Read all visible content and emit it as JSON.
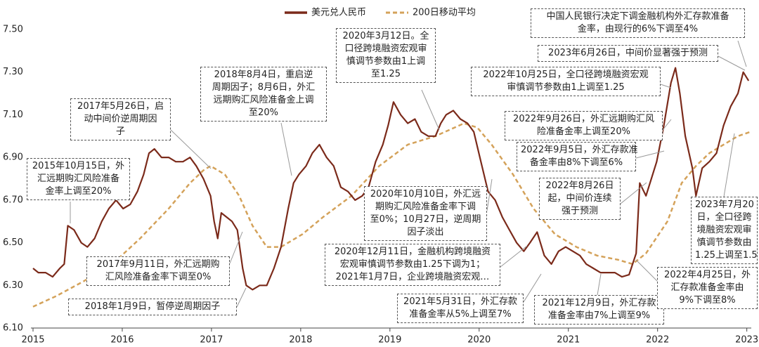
{
  "chart_data": {
    "type": "line",
    "series": [
      {
        "name": "美元兑人民币",
        "color": "#7b2a1a",
        "dashed": false,
        "x": [
          2015.0,
          2015.06,
          2015.14,
          2015.22,
          2015.3,
          2015.35,
          2015.39,
          2015.46,
          2015.54,
          2015.61,
          2015.69,
          2015.77,
          2015.85,
          2015.93,
          2016.01,
          2016.09,
          2016.17,
          2016.24,
          2016.3,
          2016.36,
          2016.44,
          2016.52,
          2016.6,
          2016.68,
          2016.76,
          2016.83,
          2016.91,
          2016.99,
          2017.03,
          2017.07,
          2017.11,
          2017.17,
          2017.23,
          2017.29,
          2017.35,
          2017.39,
          2017.46,
          2017.54,
          2017.62,
          2017.7,
          2017.78,
          2017.86,
          2017.92,
          2017.98,
          2018.06,
          2018.13,
          2018.21,
          2018.29,
          2018.37,
          2018.45,
          2018.53,
          2018.61,
          2018.69,
          2018.76,
          2018.84,
          2018.92,
          2018.98,
          2019.04,
          2019.12,
          2019.2,
          2019.28,
          2019.35,
          2019.43,
          2019.51,
          2019.57,
          2019.63,
          2019.71,
          2019.79,
          2019.87,
          2019.94,
          2020.02,
          2020.1,
          2020.18,
          2020.26,
          2020.34,
          2020.42,
          2020.5,
          2020.57,
          2020.65,
          2020.73,
          2020.81,
          2020.89,
          2020.97,
          2021.05,
          2021.13,
          2021.2,
          2021.28,
          2021.36,
          2021.44,
          2021.52,
          2021.6,
          2021.68,
          2021.76,
          2021.8,
          2021.87,
          2021.99,
          2022.07,
          2022.15,
          2022.2,
          2022.25,
          2022.31,
          2022.39,
          2022.43,
          2022.5,
          2022.58,
          2022.66,
          2022.74,
          2022.82,
          2022.9,
          2022.96,
          2023.02
        ],
        "values": [
          6.38,
          6.36,
          6.36,
          6.34,
          6.38,
          6.4,
          6.58,
          6.56,
          6.5,
          6.48,
          6.52,
          6.6,
          6.66,
          6.7,
          6.66,
          6.68,
          6.74,
          6.82,
          6.92,
          6.94,
          6.9,
          6.9,
          6.88,
          6.88,
          6.9,
          6.86,
          6.8,
          6.72,
          6.6,
          6.52,
          6.64,
          6.62,
          6.6,
          6.56,
          6.38,
          6.3,
          6.28,
          6.3,
          6.3,
          6.38,
          6.48,
          6.66,
          6.78,
          6.82,
          6.86,
          6.92,
          6.96,
          6.9,
          6.86,
          6.76,
          6.74,
          6.7,
          6.72,
          6.76,
          6.88,
          6.96,
          7.05,
          7.16,
          7.1,
          7.06,
          7.08,
          7.02,
          7.0,
          7.0,
          7.06,
          7.1,
          7.12,
          7.08,
          7.06,
          7.02,
          6.88,
          6.74,
          6.7,
          6.62,
          6.56,
          6.5,
          6.46,
          6.5,
          6.55,
          6.44,
          6.4,
          6.46,
          6.48,
          6.46,
          6.44,
          6.4,
          6.38,
          6.36,
          6.36,
          6.36,
          6.34,
          6.35,
          6.45,
          6.78,
          6.72,
          6.88,
          7.05,
          7.25,
          7.32,
          7.2,
          7.0,
          6.85,
          6.72,
          6.85,
          6.88,
          6.92,
          7.05,
          7.14,
          7.2,
          7.3,
          7.26
        ]
      },
      {
        "name": "200日移动平均",
        "color": "#d4a25a",
        "dashed": true,
        "x": [
          2015.0,
          2015.26,
          2015.57,
          2015.89,
          2016.2,
          2016.52,
          2016.76,
          2016.91,
          2016.99,
          2017.15,
          2017.31,
          2017.46,
          2017.62,
          2017.78,
          2018.02,
          2018.25,
          2018.57,
          2018.88,
          2019.2,
          2019.51,
          2019.83,
          2019.98,
          2020.14,
          2020.38,
          2020.61,
          2020.85,
          2021.09,
          2021.32,
          2021.56,
          2021.72,
          2021.87,
          2022.11,
          2022.27,
          2022.43,
          2022.58,
          2022.74,
          2022.9,
          2023.04
        ],
        "values": [
          6.2,
          6.25,
          6.32,
          6.4,
          6.52,
          6.66,
          6.78,
          6.84,
          6.86,
          6.82,
          6.72,
          6.58,
          6.48,
          6.48,
          6.54,
          6.62,
          6.72,
          6.86,
          6.96,
          7.0,
          7.06,
          7.04,
          6.96,
          6.82,
          6.66,
          6.54,
          6.48,
          6.44,
          6.42,
          6.4,
          6.45,
          6.6,
          6.78,
          6.86,
          6.92,
          6.96,
          7.0,
          7.02
        ]
      }
    ],
    "xlim": [
      2015,
      2023.05
    ],
    "xticks": [
      2015,
      2016,
      2017,
      2018,
      2019,
      2020,
      2021,
      2022,
      2023
    ],
    "ylim": [
      6.1,
      7.5
    ],
    "yticks": [
      {
        "value": 7.5,
        "label": "7.50"
      },
      {
        "value": 7.3,
        "label": "7.30"
      },
      {
        "value": 7.1,
        "label": "7.10"
      },
      {
        "value": 6.9,
        "label": "6.90"
      },
      {
        "value": 6.7,
        "label": "6.70"
      },
      {
        "value": 6.5,
        "label": "6.50"
      },
      {
        "value": 6.3,
        "label": "6.30"
      },
      {
        "value": 6.1,
        "label": "6.10"
      }
    ],
    "grid": false,
    "legend": "top",
    "annotations": [
      {
        "lines": [
          "2015年10月15日，外",
          "汇远期购汇风险准备",
          "金率上调至20%"
        ]
      },
      {
        "lines": [
          "2017年5月26日，启",
          "动中间价逆周期因",
          "子"
        ]
      },
      {
        "lines": [
          "2018年8月4日，重启逆",
          "周期因子；8月6日，外汇",
          "远期购汇风险准备金上调",
          "至20%"
        ]
      },
      {
        "lines": [
          "2020年3月12日。全",
          "口径跨境融资宏观审",
          "慎调节参数由1上调",
          "至1.25"
        ]
      },
      {
        "lines": [
          "中国人民银行决定下调金融机构外汇存款准备",
          "金率，由现行的6%下调至4%"
        ]
      },
      {
        "lines": [
          "2023年6月26日，中间价显著强于预测"
        ]
      },
      {
        "lines": [
          "2022年10月25日，全口径跨境融资宏观",
          "审慎调节参数由1上调至1.25"
        ]
      },
      {
        "lines": [
          "2022年9月26日，外汇远期购汇风",
          "险准备金率上调至20%"
        ]
      },
      {
        "lines": [
          "2022年9月5日，外汇存款准",
          "备金率由8%下调至6%"
        ]
      },
      {
        "lines": [
          "2022年8月26日",
          "起，中间价连续",
          "强于预测"
        ]
      },
      {
        "lines": [
          "2020年10月10日，外汇远",
          "期购汇风险准备金率下调",
          "至0%；10月27日，逆周期",
          "因子淡出"
        ]
      },
      {
        "lines": [
          "2017年9月11日，外汇远期购",
          "汇风险准备金率下调至0%"
        ]
      },
      {
        "lines": [
          "2018年1月9日，暂停逆周期因子"
        ]
      },
      {
        "lines": [
          "2020年12月11日，金融机构跨境融资",
          "宏观审慎调节参数由1.25下调为1；",
          "2021年1月7日，企业跨境融资宏观…"
        ]
      },
      {
        "lines": [
          "2021年5月31日，外汇存款",
          "准备金率从5%上调至7%"
        ]
      },
      {
        "lines": [
          "2021年12月9日，外汇存款",
          "准备金率由7%上调至9%"
        ]
      },
      {
        "lines": [
          "2022年4月25日，外",
          "汇存款准备金率由",
          "9%下调至8%"
        ]
      },
      {
        "lines": [
          "2023年7月20",
          "日，全口径跨",
          "境融资宏观审",
          "慎调节参数由",
          "1.25上调至1.5"
        ]
      }
    ]
  }
}
